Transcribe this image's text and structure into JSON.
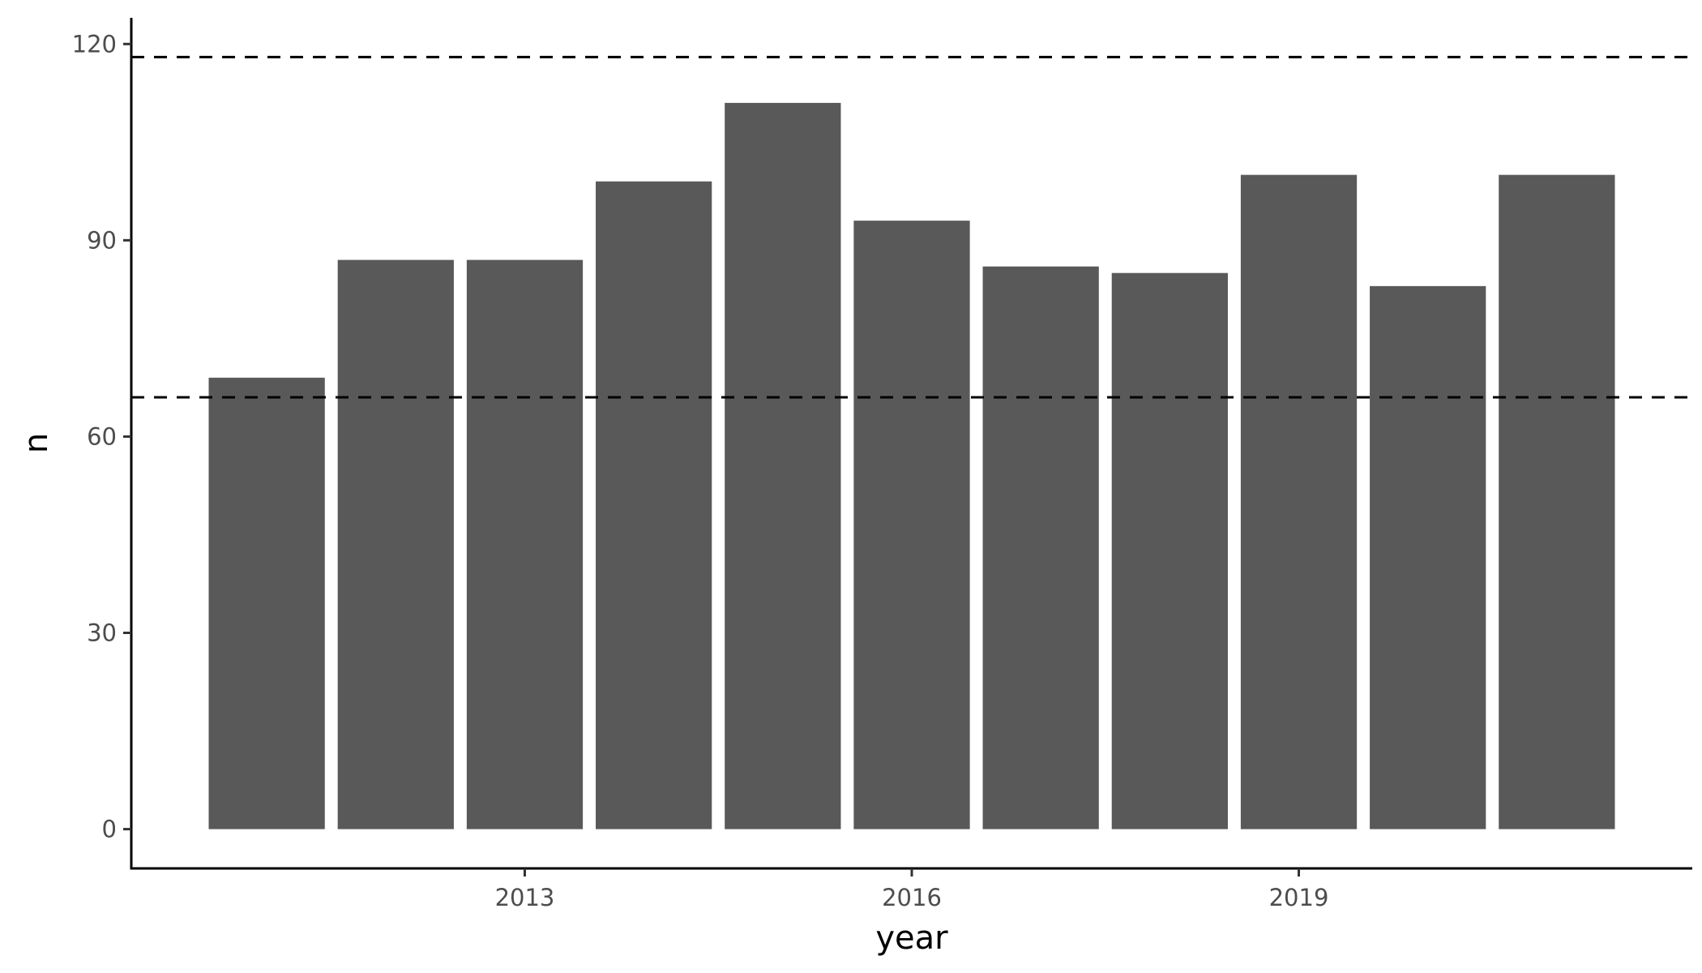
{
  "chart_data": {
    "type": "bar",
    "title": "",
    "xlabel": "year",
    "ylabel": "n",
    "categories": [
      2011,
      2012,
      2013,
      2014,
      2015,
      2016,
      2017,
      2018,
      2019,
      2020,
      2021
    ],
    "values": [
      69,
      87,
      87,
      99,
      111,
      93,
      86,
      85,
      100,
      83,
      100
    ],
    "x_ticks": [
      "2013",
      "2016",
      "2019"
    ],
    "x_tick_values": [
      2013,
      2016,
      2019
    ],
    "y_ticks": [
      "0",
      "30",
      "60",
      "90",
      "120"
    ],
    "y_tick_values": [
      0,
      30,
      60,
      90,
      120
    ],
    "ylim": [
      -6,
      124
    ],
    "reference_lines": [
      {
        "y": 118,
        "style": "dashed"
      },
      {
        "y": 66,
        "style": "dashed"
      }
    ],
    "colors": {
      "bar": "#595959",
      "reference_line": "#000000"
    },
    "grid": false,
    "legend": "none"
  }
}
